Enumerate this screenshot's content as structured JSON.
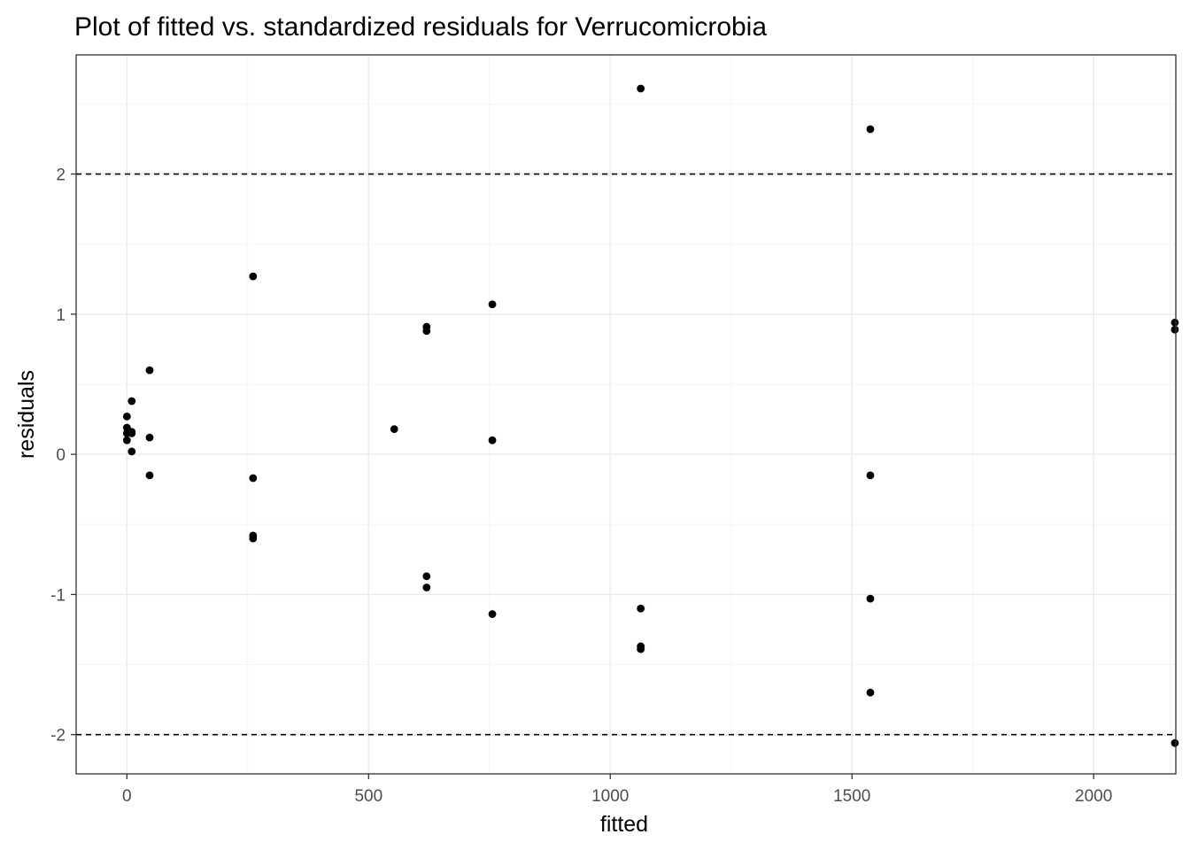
{
  "chart_data": {
    "type": "scatter",
    "title": "Plot of fitted vs. standardized residuals for Verrucomicrobia",
    "xlabel": "fitted",
    "ylabel": "residuals",
    "xlim": [
      -105,
      2170
    ],
    "ylim": [
      -2.28,
      2.85
    ],
    "x_ticks": [
      0,
      500,
      1000,
      1500,
      2000
    ],
    "x_tick_labels": [
      "0",
      "500",
      "1000",
      "1500",
      "2000"
    ],
    "y_ticks": [
      -2,
      -1,
      0,
      1,
      2
    ],
    "y_tick_labels": [
      "-2",
      "-1",
      "0",
      "1",
      "2"
    ],
    "reference_lines": [
      2,
      -2
    ],
    "reference_line_style": "dashed",
    "grid": true,
    "background": "#ffffff",
    "grid_major_color": "#ebebeb",
    "grid_minor_color": "#f5f5f5",
    "point_color": "#000000",
    "points": [
      {
        "x": 0,
        "y": 0.27
      },
      {
        "x": 0,
        "y": 0.19
      },
      {
        "x": 0,
        "y": 0.15
      },
      {
        "x": 0,
        "y": 0.1
      },
      {
        "x": 2,
        "y": 0.17
      },
      {
        "x": 10,
        "y": 0.38
      },
      {
        "x": 10,
        "y": 0.16
      },
      {
        "x": 10,
        "y": 0.15
      },
      {
        "x": 10,
        "y": 0.02
      },
      {
        "x": 47,
        "y": 0.6
      },
      {
        "x": 47,
        "y": 0.12
      },
      {
        "x": 47,
        "y": -0.15
      },
      {
        "x": 261,
        "y": 1.27
      },
      {
        "x": 261,
        "y": -0.17
      },
      {
        "x": 261,
        "y": -0.58
      },
      {
        "x": 261,
        "y": -0.6
      },
      {
        "x": 553,
        "y": 0.18
      },
      {
        "x": 620,
        "y": 0.91
      },
      {
        "x": 620,
        "y": 0.88
      },
      {
        "x": 620,
        "y": -0.87
      },
      {
        "x": 620,
        "y": -0.95
      },
      {
        "x": 756,
        "y": 1.07
      },
      {
        "x": 756,
        "y": 0.1
      },
      {
        "x": 756,
        "y": -1.14
      },
      {
        "x": 1063,
        "y": 2.61
      },
      {
        "x": 1063,
        "y": -1.1
      },
      {
        "x": 1063,
        "y": -1.37
      },
      {
        "x": 1063,
        "y": -1.39
      },
      {
        "x": 1538,
        "y": 2.32
      },
      {
        "x": 1538,
        "y": -0.15
      },
      {
        "x": 1538,
        "y": -1.03
      },
      {
        "x": 1538,
        "y": -1.7
      },
      {
        "x": 2168,
        "y": 0.94
      },
      {
        "x": 2168,
        "y": 0.89
      },
      {
        "x": 2168,
        "y": -2.06
      }
    ]
  }
}
